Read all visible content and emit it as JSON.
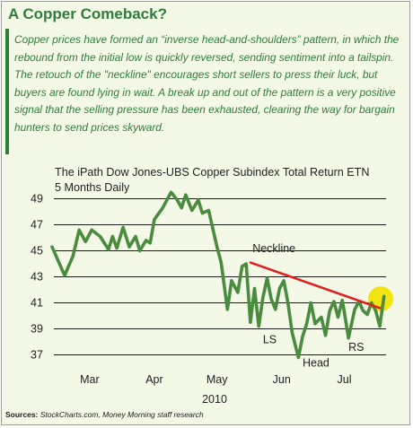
{
  "header": {
    "title": "A Copper Comeback?",
    "description": "Copper prices have formed an “inverse head-and-shoulders” pattern, in which the rebound from the initial low is quickly reversed, sending sentiment into a tailspin. The retouch of the \"neckline\" encourages short sellers to press their luck, but buyers are found lying in wait. A break up and out of the pattern is a very positive signal that the selling pressure has been exhausted, clearing the way for bargain hunters to send prices skyward."
  },
  "source": {
    "label": "Sources:",
    "text": "StockCharts.com, Money Morning staff research"
  },
  "colors": {
    "accent": "#2f7d3a",
    "line": "#4a8c3f",
    "neckline": "#e02020",
    "highlight": "#f2e313",
    "background": "#f4f8e6"
  },
  "chart_data": {
    "type": "line",
    "title": "The iPath Dow Jones-UBS Copper Subindex Total Return ETN",
    "subtitle": "5 Months Daily",
    "xlabel": "2010",
    "ylabel": "",
    "ylim": [
      36,
      50
    ],
    "y_ticks": [
      37,
      39,
      41,
      43,
      45,
      47,
      49
    ],
    "x_ticks": [
      {
        "label": "Mar",
        "day": 18
      },
      {
        "label": "Apr",
        "day": 49
      },
      {
        "label": "May",
        "day": 79
      },
      {
        "label": "Jun",
        "day": 110
      },
      {
        "label": "Jul",
        "day": 140
      }
    ],
    "x_range": [
      0,
      152
    ],
    "grid": "horizontal",
    "series": [
      {
        "name": "",
        "points": [
          [
            0,
            45.3
          ],
          [
            6,
            43.1
          ],
          [
            10,
            44.6
          ],
          [
            13,
            46.6
          ],
          [
            16,
            45.7
          ],
          [
            19,
            46.6
          ],
          [
            23,
            46.1
          ],
          [
            27,
            45.1
          ],
          [
            29,
            46.1
          ],
          [
            31,
            45.2
          ],
          [
            34,
            46.8
          ],
          [
            37,
            45.3
          ],
          [
            40,
            46.1
          ],
          [
            42,
            45.0
          ],
          [
            45,
            45.8
          ],
          [
            47,
            45.6
          ],
          [
            49,
            47.4
          ],
          [
            53,
            48.3
          ],
          [
            57,
            49.5
          ],
          [
            60,
            48.9
          ],
          [
            62,
            48.3
          ],
          [
            64,
            49.3
          ],
          [
            67,
            48.1
          ],
          [
            70,
            48.9
          ],
          [
            72,
            47.9
          ],
          [
            75,
            48.1
          ],
          [
            79,
            45.3
          ],
          [
            81,
            44.1
          ],
          [
            84,
            40.5
          ],
          [
            86,
            42.7
          ],
          [
            89,
            41.8
          ],
          [
            91,
            43.8
          ],
          [
            93,
            44.0
          ],
          [
            95,
            39.5
          ],
          [
            97,
            42.1
          ],
          [
            99,
            39.2
          ],
          [
            101,
            41.4
          ],
          [
            103,
            42.9
          ],
          [
            105,
            41.3
          ],
          [
            107,
            40.5
          ],
          [
            109,
            42.1
          ],
          [
            111,
            42.7
          ],
          [
            113,
            41.0
          ],
          [
            115,
            38.7
          ],
          [
            118,
            36.8
          ],
          [
            120,
            38.4
          ],
          [
            122,
            39.4
          ],
          [
            124,
            41.0
          ],
          [
            126,
            39.4
          ],
          [
            129,
            39.9
          ],
          [
            131,
            38.5
          ],
          [
            133,
            40.4
          ],
          [
            135,
            41.1
          ],
          [
            137,
            39.9
          ],
          [
            139,
            41.2
          ],
          [
            140,
            40.3
          ],
          [
            142,
            38.3
          ],
          [
            145,
            40.5
          ],
          [
            147,
            41.1
          ],
          [
            149,
            40.4
          ],
          [
            151,
            40.1
          ],
          [
            153,
            41.0
          ],
          [
            155,
            40.4
          ],
          [
            157,
            39.2
          ],
          [
            159,
            41.5
          ]
        ]
      }
    ],
    "neckline": {
      "from": [
        95,
        44.1
      ],
      "to": [
        157,
        40.6
      ]
    },
    "highlight": {
      "at": [
        157,
        41.3
      ]
    },
    "annotations": [
      {
        "text": "Neckline",
        "at": [
          96,
          44.9
        ]
      },
      {
        "text": "LS",
        "at": [
          101,
          37.9
        ]
      },
      {
        "text": "Head",
        "at": [
          120,
          36.1
        ]
      },
      {
        "text": "RS",
        "at": [
          142,
          37.3
        ]
      }
    ]
  }
}
